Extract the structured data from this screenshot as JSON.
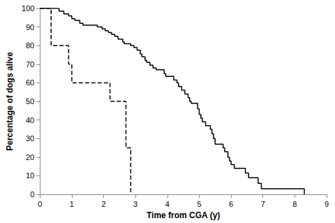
{
  "chart_data": {
    "type": "step",
    "x_label": "Time from CGA (y)",
    "y_label": "Percentage of dogs alive",
    "xlim": [
      0,
      9
    ],
    "xticks": [
      0,
      1,
      2,
      3,
      4,
      5,
      6,
      7,
      8,
      9
    ],
    "ylim": [
      0,
      100
    ],
    "yticks": [
      0,
      10,
      20,
      30,
      40,
      50,
      60,
      70,
      80,
      90,
      100
    ],
    "grid": false,
    "series": [
      {
        "color": "#000000",
        "line_style": "solid",
        "x": [
          0,
          0.6,
          0.75,
          0.9,
          1.0,
          1.1,
          1.25,
          1.35,
          1.8,
          1.95,
          2.05,
          2.15,
          2.25,
          2.35,
          2.45,
          2.6,
          2.65,
          2.85,
          2.95,
          3.05,
          3.15,
          3.2,
          3.3,
          3.35,
          3.45,
          3.55,
          3.65,
          3.9,
          3.95,
          4.2,
          4.3,
          4.35,
          4.45,
          4.55,
          4.65,
          4.7,
          4.75,
          4.95,
          5.0,
          5.05,
          5.1,
          5.2,
          5.35,
          5.4,
          5.45,
          5.5,
          5.75,
          5.8,
          5.9,
          5.95,
          6.0,
          6.1,
          6.45,
          6.55,
          6.85,
          6.95,
          8.3
        ],
        "values": [
          100,
          98.5,
          97,
          96,
          94.5,
          93.5,
          92,
          91,
          90,
          89,
          88,
          87,
          86,
          85,
          83.5,
          82,
          81,
          80,
          79,
          77.5,
          75.5,
          74,
          72,
          71,
          69.5,
          68,
          67,
          65,
          63.5,
          61.5,
          60,
          58,
          56,
          54,
          52,
          50,
          49,
          46,
          43,
          41,
          39,
          37,
          35,
          32.5,
          30,
          27,
          25,
          23,
          20,
          18,
          16,
          14,
          11.5,
          9,
          6,
          3,
          0
        ]
      },
      {
        "color": "#000000",
        "line_style": "dashed",
        "x": [
          0,
          0.35,
          0.9,
          1.0,
          2.2,
          2.7,
          2.85
        ],
        "values": [
          100,
          80,
          70,
          60,
          50,
          25,
          0
        ]
      }
    ]
  }
}
